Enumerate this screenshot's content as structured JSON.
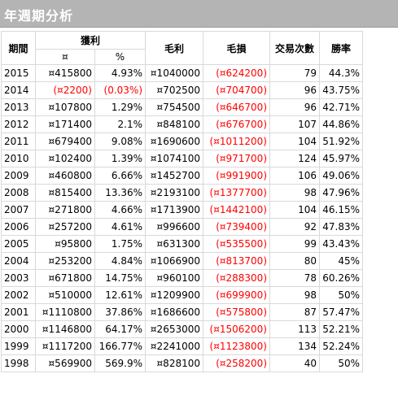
{
  "header": {
    "title": "年週期分析"
  },
  "table": {
    "columns": {
      "period": "期間",
      "profit_group": "獲利",
      "profit_currency": "¤",
      "profit_percent": "%",
      "gross_profit": "毛利",
      "gross_loss": "毛損",
      "trades": "交易次數",
      "win_rate": "勝率"
    },
    "rows": [
      {
        "year": "2015",
        "profit": "¤415800",
        "percent": "4.93%",
        "gross_profit": "¤1040000",
        "gross_loss": "(¤624200)",
        "trades": "79",
        "win_rate": "44.3%",
        "neg": false
      },
      {
        "year": "2014",
        "profit": "(¤2200)",
        "percent": "(0.03%)",
        "gross_profit": "¤702500",
        "gross_loss": "(¤704700)",
        "trades": "96",
        "win_rate": "43.75%",
        "neg": true
      },
      {
        "year": "2013",
        "profit": "¤107800",
        "percent": "1.29%",
        "gross_profit": "¤754500",
        "gross_loss": "(¤646700)",
        "trades": "96",
        "win_rate": "42.71%",
        "neg": false
      },
      {
        "year": "2012",
        "profit": "¤171400",
        "percent": "2.1%",
        "gross_profit": "¤848100",
        "gross_loss": "(¤676700)",
        "trades": "107",
        "win_rate": "44.86%",
        "neg": false
      },
      {
        "year": "2011",
        "profit": "¤679400",
        "percent": "9.08%",
        "gross_profit": "¤1690600",
        "gross_loss": "(¤1011200)",
        "trades": "104",
        "win_rate": "51.92%",
        "neg": false
      },
      {
        "year": "2010",
        "profit": "¤102400",
        "percent": "1.39%",
        "gross_profit": "¤1074100",
        "gross_loss": "(¤971700)",
        "trades": "124",
        "win_rate": "45.97%",
        "neg": false
      },
      {
        "year": "2009",
        "profit": "¤460800",
        "percent": "6.66%",
        "gross_profit": "¤1452700",
        "gross_loss": "(¤991900)",
        "trades": "106",
        "win_rate": "49.06%",
        "neg": false
      },
      {
        "year": "2008",
        "profit": "¤815400",
        "percent": "13.36%",
        "gross_profit": "¤2193100",
        "gross_loss": "(¤1377700)",
        "trades": "98",
        "win_rate": "47.96%",
        "neg": false
      },
      {
        "year": "2007",
        "profit": "¤271800",
        "percent": "4.66%",
        "gross_profit": "¤1713900",
        "gross_loss": "(¤1442100)",
        "trades": "104",
        "win_rate": "46.15%",
        "neg": false
      },
      {
        "year": "2006",
        "profit": "¤257200",
        "percent": "4.61%",
        "gross_profit": "¤996600",
        "gross_loss": "(¤739400)",
        "trades": "92",
        "win_rate": "47.83%",
        "neg": false
      },
      {
        "year": "2005",
        "profit": "¤95800",
        "percent": "1.75%",
        "gross_profit": "¤631300",
        "gross_loss": "(¤535500)",
        "trades": "99",
        "win_rate": "43.43%",
        "neg": false
      },
      {
        "year": "2004",
        "profit": "¤253200",
        "percent": "4.84%",
        "gross_profit": "¤1066900",
        "gross_loss": "(¤813700)",
        "trades": "80",
        "win_rate": "45%",
        "neg": false
      },
      {
        "year": "2003",
        "profit": "¤671800",
        "percent": "14.75%",
        "gross_profit": "¤960100",
        "gross_loss": "(¤288300)",
        "trades": "78",
        "win_rate": "60.26%",
        "neg": false
      },
      {
        "year": "2002",
        "profit": "¤510000",
        "percent": "12.61%",
        "gross_profit": "¤1209900",
        "gross_loss": "(¤699900)",
        "trades": "98",
        "win_rate": "50%",
        "neg": false
      },
      {
        "year": "2001",
        "profit": "¤1110800",
        "percent": "37.86%",
        "gross_profit": "¤1686600",
        "gross_loss": "(¤575800)",
        "trades": "87",
        "win_rate": "57.47%",
        "neg": false
      },
      {
        "year": "2000",
        "profit": "¤1146800",
        "percent": "64.17%",
        "gross_profit": "¤2653000",
        "gross_loss": "(¤1506200)",
        "trades": "113",
        "win_rate": "52.21%",
        "neg": false
      },
      {
        "year": "1999",
        "profit": "¤1117200",
        "percent": "166.77%",
        "gross_profit": "¤2241000",
        "gross_loss": "(¤1123800)",
        "trades": "134",
        "win_rate": "52.24%",
        "neg": false
      },
      {
        "year": "1998",
        "profit": "¤569900",
        "percent": "569.9%",
        "gross_profit": "¤828100",
        "gross_loss": "(¤258200)",
        "trades": "40",
        "win_rate": "50%",
        "neg": false
      }
    ]
  },
  "colors": {
    "header_bg": "#b4b4b4",
    "negative": "#ff0000",
    "grid": "#d9d9d9"
  }
}
